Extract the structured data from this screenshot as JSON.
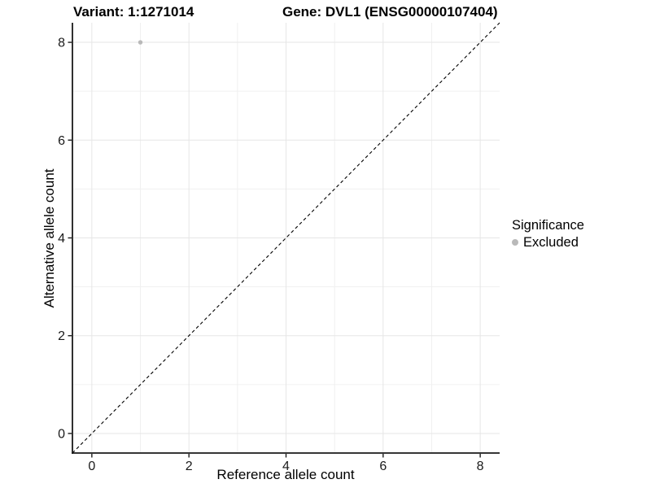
{
  "chart_data": {
    "type": "scatter",
    "title_variant": "Variant: 1:1271014",
    "title_gene": "Gene: DVL1 (ENSG00000107404)",
    "xlabel": "Reference allele count",
    "ylabel": "Alternative allele count",
    "xlim": [
      -0.4,
      8.4
    ],
    "ylim": [
      -0.4,
      8.4
    ],
    "xticks": [
      0,
      2,
      4,
      6,
      8
    ],
    "yticks": [
      0,
      2,
      4,
      6,
      8
    ],
    "xminor": [
      1,
      3,
      5,
      7
    ],
    "yminor": [
      1,
      3,
      5,
      7
    ],
    "grid": true,
    "points": [
      {
        "x": 1,
        "y": 8,
        "series": "Excluded"
      }
    ],
    "abline": {
      "slope": 1,
      "intercept": 0,
      "linestyle": "dashed",
      "color": "#000000"
    },
    "legend": {
      "title": "Significance",
      "position": "right",
      "entries": [
        {
          "label": "Excluded",
          "color": "#b9b9b9"
        }
      ]
    },
    "colors": {
      "grid_major": "#e6e6e6",
      "grid_minor": "#f0f0f0",
      "axis": "#1a1a1a",
      "tick_text": "#1a1a1a",
      "point": "#b9b9b9",
      "background": "#ffffff"
    }
  }
}
